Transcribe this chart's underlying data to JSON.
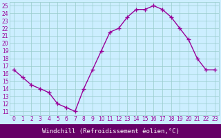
{
  "x": [
    0,
    1,
    2,
    3,
    4,
    5,
    6,
    7,
    8,
    9,
    10,
    11,
    12,
    13,
    14,
    15,
    16,
    17,
    18,
    19,
    20,
    21,
    22,
    23
  ],
  "y": [
    16.5,
    15.5,
    14.5,
    14.0,
    13.5,
    12.0,
    11.5,
    11.0,
    14.0,
    16.5,
    19.0,
    21.5,
    22.0,
    23.5,
    24.5,
    24.5,
    25.0,
    24.5,
    23.5,
    22.0,
    20.5,
    18.0,
    16.5,
    16.5
  ],
  "line_color": "#990099",
  "marker": "+",
  "markersize": 4,
  "linewidth": 1.0,
  "xlim": [
    -0.5,
    23.5
  ],
  "ylim": [
    10.5,
    25.5
  ],
  "yticks": [
    11,
    12,
    13,
    14,
    15,
    16,
    17,
    18,
    19,
    20,
    21,
    22,
    23,
    24,
    25
  ],
  "xticks": [
    0,
    1,
    2,
    3,
    4,
    5,
    6,
    7,
    8,
    9,
    10,
    11,
    12,
    13,
    14,
    15,
    16,
    17,
    18,
    19,
    20,
    21,
    22,
    23
  ],
  "xlabel": "Windchill (Refroidissement éolien,°C)",
  "background_color": "#cceeff",
  "plot_bg_color": "#cceeff",
  "grid_color": "#99cccc",
  "tick_fontsize": 5.5,
  "xlabel_fontsize": 6.5,
  "axis_label_bg": "#660066",
  "axis_label_fg": "#ffffff"
}
